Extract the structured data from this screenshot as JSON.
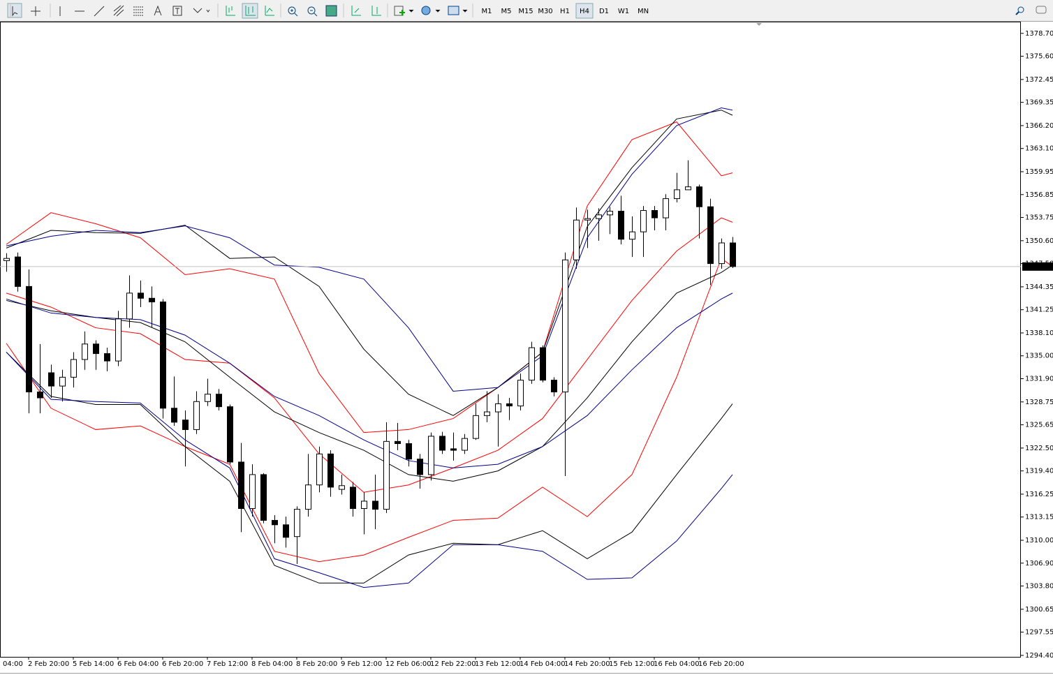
{
  "toolbar": {
    "timeframes": [
      "M1",
      "M5",
      "M15",
      "M30",
      "H1",
      "H4",
      "D1",
      "W1",
      "MN"
    ],
    "active": "H4"
  },
  "chart_data": {
    "type": "candlestick",
    "categories": [
      null,
      null,
      "2 Feb 20:00",
      null,
      null,
      null,
      "5 Feb 14:00",
      null,
      null,
      null,
      "6 Feb 04:00",
      null,
      null,
      null,
      "6 Feb 20:00",
      null,
      null,
      null,
      "7 Feb 12:00",
      null,
      null,
      null,
      "8 Feb 04:00",
      null,
      null,
      null,
      "8 Feb 20:00",
      null,
      null,
      null,
      "9 Feb 12:00",
      null,
      null,
      null,
      "12 Feb 06:00",
      null,
      null,
      null,
      "12 Feb 22:00",
      null,
      null,
      null,
      "13 Feb 12:00",
      null,
      null,
      null,
      "14 Feb 04:00",
      null,
      null,
      null,
      "14 Feb 20:00",
      null,
      null,
      null,
      "15 Feb 12:00",
      null,
      null,
      null,
      "16 Feb 04:00",
      null,
      null,
      null,
      "16 Feb 20:00",
      null,
      null,
      null
    ],
    "first_time_label": "04:00",
    "open": [
      1347.9,
      1348.4,
      1344.4,
      1330.1,
      1332.7,
      1330.9,
      1332.1,
      1334.5,
      1336.6,
      1335.3,
      1334.3,
      1340.0,
      1343.5,
      1342.8,
      1342.3,
      1327.9,
      1326.3,
      1325.0,
      1328.8,
      1329.8,
      1328.1,
      1320.6,
      1314.3,
      1318.9,
      1312.7,
      1312.1,
      1310.5,
      1314.2,
      1317.5,
      1321.7,
      1316.9,
      1317.2,
      1314.3,
      1315.3,
      1314.2,
      1323.4,
      1323.1,
      1321.0,
      1318.9,
      1324.1,
      1322.4,
      1322.2,
      1323.8,
      1326.9,
      1327.4,
      1328.5,
      1328.2,
      1331.7,
      1336.1,
      1331.7,
      1330.1,
      1348.0,
      1353.4,
      1353.6,
      1354.1,
      1354.6,
      1350.8,
      1351.8,
      1354.7,
      1353.7,
      1356.3,
      1357.5,
      1357.9,
      1355.2,
      1347.5,
      1350.3
    ],
    "high": [
      1348.9,
      1349.0,
      1346.7,
      1336.6,
      1333.8,
      1333.1,
      1335.5,
      1338.3,
      1337.1,
      1336.1,
      1341.1,
      1345.9,
      1345.2,
      1344.4,
      1342.7,
      1332.2,
      1327.6,
      1330.2,
      1331.9,
      1330.5,
      1328.4,
      1323.2,
      1320.3,
      1319.1,
      1313.4,
      1313.2,
      1314.6,
      1321.7,
      1322.7,
      1322.2,
      1318.9,
      1317.9,
      1316.5,
      1318.9,
      1326.0,
      1325.9,
      1323.6,
      1321.7,
      1324.6,
      1324.7,
      1324.6,
      1324.4,
      1328.5,
      1330.2,
      1329.8,
      1329.3,
      1332.6,
      1336.9,
      1336.4,
      1332.1,
      1349.0,
      1355.1,
      1354.8,
      1355.0,
      1355.2,
      1356.7,
      1353.9,
      1355.3,
      1355.3,
      1356.9,
      1359.8,
      1361.5,
      1358.2,
      1356.3,
      1350.9,
      1351.1
    ],
    "low": [
      1346.4,
      1343.7,
      1327.2,
      1327.2,
      1329.3,
      1328.8,
      1330.7,
      1333.1,
      1333.1,
      1332.9,
      1333.6,
      1338.8,
      1341.6,
      1338.9,
      1326.5,
      1325.5,
      1320.0,
      1324.4,
      1328.2,
      1327.6,
      1320.3,
      1311.1,
      1313.2,
      1312.3,
      1309.6,
      1309.0,
      1306.8,
      1313.2,
      1316.5,
      1315.9,
      1316.2,
      1313.2,
      1310.8,
      1311.5,
      1313.7,
      1322.2,
      1320.0,
      1317.0,
      1318.1,
      1321.7,
      1320.8,
      1321.7,
      1323.6,
      1326.0,
      1322.7,
      1326.3,
      1327.6,
      1331.2,
      1331.4,
      1329.5,
      1318.7,
      1346.8,
      1349.6,
      1350.6,
      1351.5,
      1350.1,
      1348.4,
      1348.4,
      1352.0,
      1352.0,
      1355.8,
      1357.5,
      1350.9,
      1344.6,
      1346.8,
      1346.9
    ],
    "close": [
      1348.2,
      1344.4,
      1330.1,
      1329.3,
      1330.9,
      1332.1,
      1334.5,
      1336.6,
      1335.3,
      1334.3,
      1340.0,
      1343.5,
      1342.8,
      1342.3,
      1327.9,
      1326.0,
      1325.0,
      1328.8,
      1329.8,
      1328.1,
      1320.6,
      1314.3,
      1318.9,
      1312.7,
      1312.1,
      1310.4,
      1314.2,
      1317.5,
      1321.7,
      1317.2,
      1317.4,
      1314.3,
      1315.3,
      1314.2,
      1323.4,
      1323.1,
      1321.0,
      1318.9,
      1324.1,
      1322.2,
      1322.2,
      1323.8,
      1326.9,
      1327.4,
      1328.5,
      1328.2,
      1331.7,
      1336.1,
      1331.7,
      1330.1,
      1348.0,
      1353.4,
      1353.6,
      1354.1,
      1354.6,
      1350.8,
      1351.8,
      1354.7,
      1353.7,
      1356.3,
      1357.5,
      1357.9,
      1355.2,
      1347.5,
      1350.3,
      1347.1
    ],
    "bull_color": "#ffffff",
    "bear_color": "#000000",
    "outline_color": "#000000",
    "bands_x": [
      0,
      4,
      8,
      12,
      16,
      20,
      24,
      28,
      32,
      36,
      40,
      44,
      48,
      52,
      56,
      60,
      64,
      65
    ],
    "bands": [
      {
        "color": "#ff0000",
        "values": [
          1350.1,
          1354.4,
          1352.9,
          1351.0,
          1346.0,
          1346.8,
          1345.4,
          1332.6,
          1324.6,
          1325.0,
          1326.5,
          1330.7,
          1335.5,
          1355.3,
          1364.3,
          1366.7,
          1359.4,
          1359.8
        ]
      },
      {
        "color": "#ff0000",
        "values": [
          1343.5,
          1341.6,
          1338.8,
          1338.0,
          1334.5,
          1334.0,
          1329.3,
          1321.7,
          1316.5,
          1317.5,
          1319.8,
          1322.2,
          1326.5,
          1334.5,
          1342.5,
          1349.2,
          1353.7,
          1353.1
        ]
      },
      {
        "color": "#ff0000",
        "values": [
          1336.7,
          1327.9,
          1325.0,
          1325.5,
          1322.7,
          1320.3,
          1308.5,
          1307.1,
          1308.0,
          1310.4,
          1312.7,
          1313.0,
          1317.2,
          1313.2,
          1318.9,
          1332.1,
          1348.2,
          1347.1
        ]
      },
      {
        "color": "#000000",
        "values": [
          1349.6,
          1352.0,
          1351.7,
          1351.6,
          1352.7,
          1348.2,
          1348.4,
          1344.4,
          1335.9,
          1329.8,
          1326.9,
          1330.7,
          1335.5,
          1352.5,
          1360.5,
          1367.1,
          1368.3,
          1367.6
        ]
      },
      {
        "color": "#000000",
        "values": [
          1342.5,
          1341.1,
          1340.2,
          1339.5,
          1336.9,
          1332.1,
          1327.4,
          1324.6,
          1322.2,
          1318.9,
          1318.0,
          1319.4,
          1322.7,
          1329.3,
          1336.9,
          1343.5,
          1346.3,
          1347.3
        ]
      },
      {
        "color": "#000000",
        "values": [
          1335.5,
          1329.5,
          1328.4,
          1328.4,
          1322.7,
          1318.0,
          1306.6,
          1304.2,
          1304.2,
          1308.0,
          1309.6,
          1309.4,
          1311.3,
          1307.5,
          1311.1,
          1318.9,
          1326.5,
          1328.5
        ]
      },
      {
        "color": "#00008b",
        "values": [
          1349.9,
          1351.2,
          1352.0,
          1351.7,
          1352.6,
          1351.0,
          1347.3,
          1347.0,
          1345.4,
          1338.8,
          1330.2,
          1330.7,
          1335.0,
          1351.0,
          1359.6,
          1366.2,
          1368.6,
          1368.3
        ]
      },
      {
        "color": "#00008b",
        "values": [
          1342.7,
          1340.8,
          1340.2,
          1339.9,
          1337.8,
          1334.0,
          1329.5,
          1326.9,
          1323.6,
          1320.8,
          1319.8,
          1320.3,
          1322.7,
          1326.9,
          1333.1,
          1338.8,
          1342.7,
          1343.5
        ]
      },
      {
        "color": "#00008b",
        "values": [
          1335.5,
          1329.1,
          1328.8,
          1328.6,
          1323.6,
          1319.8,
          1307.5,
          1305.6,
          1303.6,
          1304.2,
          1309.4,
          1309.4,
          1308.5,
          1304.7,
          1304.9,
          1309.9,
          1317.0,
          1318.9
        ]
      }
    ],
    "ylim": [
      1294.2,
      1380.1
    ],
    "yticks": [
      {
        "value": 1294.4,
        "label": "1294.40"
      },
      {
        "value": 1297.55,
        "label": "1297.55"
      },
      {
        "value": 1300.65,
        "label": "1300.65"
      },
      {
        "value": 1303.8,
        "label": "1303.80"
      },
      {
        "value": 1306.9,
        "label": "1306.90"
      },
      {
        "value": 1310.0,
        "label": "1310.00"
      },
      {
        "value": 1313.15,
        "label": "1313.15"
      },
      {
        "value": 1316.25,
        "label": "1316.25"
      },
      {
        "value": 1319.4,
        "label": "1319.40"
      },
      {
        "value": 1322.5,
        "label": "1322.50"
      },
      {
        "value": 1325.65,
        "label": "1325.65"
      },
      {
        "value": 1328.75,
        "label": "1328.75"
      },
      {
        "value": 1331.9,
        "label": "1331.90"
      },
      {
        "value": 1335.0,
        "label": "1335.00"
      },
      {
        "value": 1338.1,
        "label": "1338.10"
      },
      {
        "value": 1341.25,
        "label": "1341.25"
      },
      {
        "value": 1344.35,
        "label": "1344.35"
      },
      {
        "value": 1347.5,
        "label": "1347.50"
      },
      {
        "value": 1350.6,
        "label": "1350.60"
      },
      {
        "value": 1353.75,
        "label": "1353.75"
      },
      {
        "value": 1356.85,
        "label": "1356.85"
      },
      {
        "value": 1359.95,
        "label": "1359.95"
      },
      {
        "value": 1363.1,
        "label": "1363.10"
      },
      {
        "value": 1366.2,
        "label": "1366.20"
      },
      {
        "value": 1369.35,
        "label": "1369.35"
      },
      {
        "value": 1372.45,
        "label": "1372.45"
      },
      {
        "value": 1375.6,
        "label": "1375.60"
      },
      {
        "value": 1378.7,
        "label": "1378.70"
      }
    ],
    "last_price": {
      "value": 1347.1,
      "label": "1347.10"
    }
  }
}
